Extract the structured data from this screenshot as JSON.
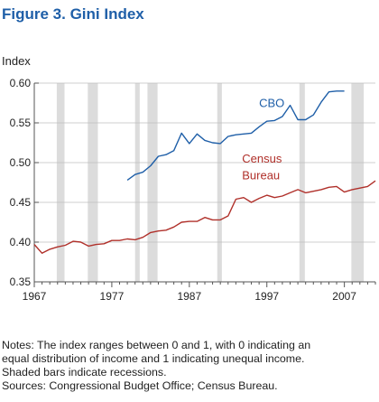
{
  "figure": {
    "title": "Figure 3. Gini Index",
    "y_axis_label": "Index"
  },
  "chart_data": {
    "type": "line",
    "title": "Figure 3. Gini Index",
    "ylabel": "Index",
    "xlabel": "",
    "xlim": [
      1967,
      2011
    ],
    "ylim": [
      0.35,
      0.6
    ],
    "x_ticks": [
      1967,
      1977,
      1987,
      1997,
      2007
    ],
    "y_ticks": [
      0.35,
      0.4,
      0.45,
      0.5,
      0.55,
      0.6
    ],
    "y_tick_labels": [
      "0.35",
      "0.40",
      "0.45",
      "0.50",
      "0.55",
      "0.60"
    ],
    "grid": true,
    "recessions": [
      [
        1969.9,
        1970.9
      ],
      [
        1973.9,
        1975.2
      ],
      [
        1980.0,
        1980.6
      ],
      [
        1981.6,
        1982.9
      ],
      [
        1990.6,
        1991.2
      ],
      [
        2001.2,
        2001.9
      ],
      [
        2007.9,
        2009.5
      ]
    ],
    "series": [
      {
        "name": "CBO",
        "color": "#1f5fa8",
        "x": [
          1979,
          1980,
          1981,
          1982,
          1983,
          1984,
          1985,
          1986,
          1987,
          1988,
          1989,
          1990,
          1991,
          1992,
          1993,
          1994,
          1995,
          1996,
          1997,
          1998,
          1999,
          2000,
          2001,
          2002,
          2003,
          2004,
          2005,
          2006,
          2007
        ],
        "values": [
          0.478,
          0.485,
          0.488,
          0.496,
          0.508,
          0.51,
          0.515,
          0.537,
          0.524,
          0.536,
          0.528,
          0.525,
          0.524,
          0.533,
          0.535,
          0.536,
          0.537,
          0.545,
          0.552,
          0.553,
          0.558,
          0.572,
          0.554,
          0.554,
          0.56,
          0.576,
          0.589,
          0.59,
          0.59
        ]
      },
      {
        "name": "Census Bureau",
        "color": "#b0302a",
        "x": [
          1967,
          1968,
          1969,
          1970,
          1971,
          1972,
          1973,
          1974,
          1975,
          1976,
          1977,
          1978,
          1979,
          1980,
          1981,
          1982,
          1983,
          1984,
          1985,
          1986,
          1987,
          1988,
          1989,
          1990,
          1991,
          1992,
          1993,
          1994,
          1995,
          1996,
          1997,
          1998,
          1999,
          2000,
          2001,
          2002,
          2003,
          2004,
          2005,
          2006,
          2007,
          2008,
          2009,
          2010,
          2011
        ],
        "values": [
          0.397,
          0.386,
          0.391,
          0.394,
          0.396,
          0.401,
          0.4,
          0.395,
          0.397,
          0.398,
          0.402,
          0.402,
          0.404,
          0.403,
          0.406,
          0.412,
          0.414,
          0.415,
          0.419,
          0.425,
          0.426,
          0.426,
          0.431,
          0.428,
          0.428,
          0.433,
          0.454,
          0.456,
          0.45,
          0.455,
          0.459,
          0.456,
          0.458,
          0.462,
          0.466,
          0.462,
          0.464,
          0.466,
          0.469,
          0.47,
          0.463,
          0.466,
          0.468,
          0.47,
          0.477
        ]
      }
    ],
    "annotations": [
      {
        "text": "CBO",
        "x": 1996,
        "y": 0.57,
        "color": "#1f5fa8"
      },
      {
        "text": "Census",
        "x": 1993.8,
        "y": 0.5,
        "color": "#b0302a"
      },
      {
        "text": "Bureau",
        "x": 1993.8,
        "y": 0.479,
        "color": "#b0302a"
      }
    ]
  },
  "notes": {
    "line1": "Notes: The index ranges between 0 and 1, with 0 indicating an",
    "line2": "equal distribution of income and 1 indicating unequal income.",
    "line3": "Shaded bars indicate recessions.",
    "line4": "Sources: Congressional Budget Office; Census Bureau."
  }
}
